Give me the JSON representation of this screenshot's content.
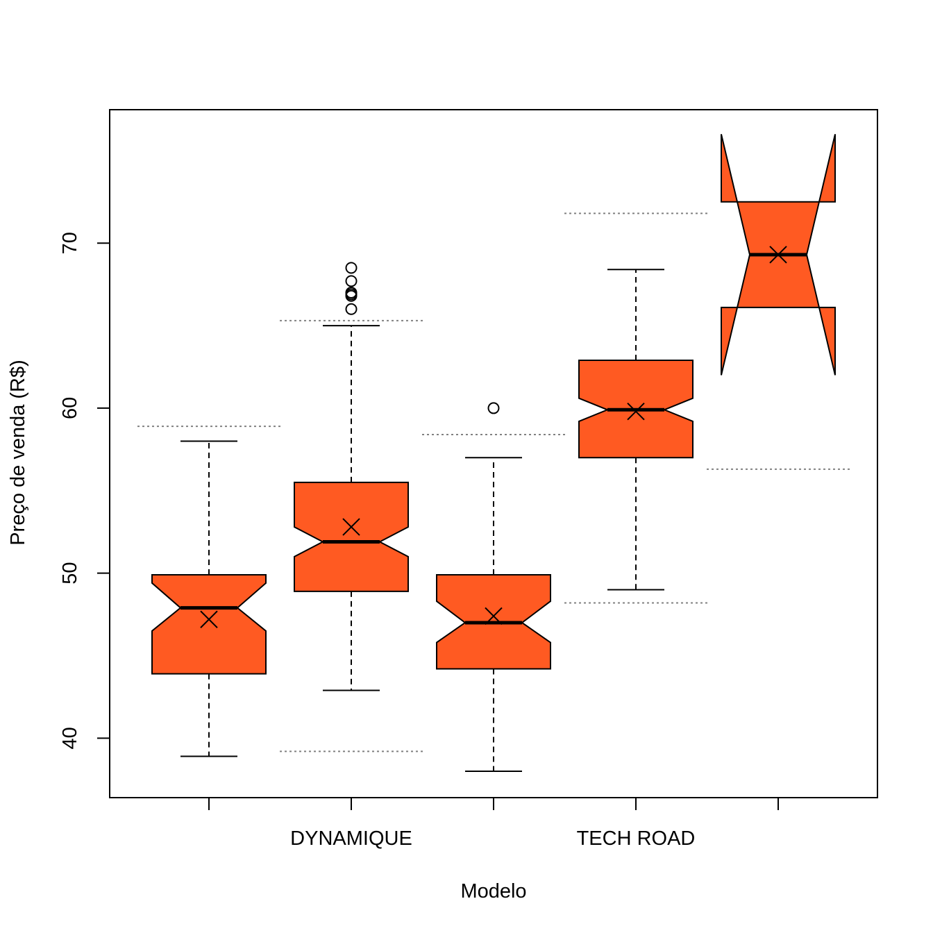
{
  "chart_data": {
    "type": "boxplot",
    "title": "",
    "xlabel": "Modelo",
    "ylabel": "Preço de venda (R$)",
    "ylim": [
      36.5,
      77.1
    ],
    "y_ticks": [
      40,
      50,
      60,
      70
    ],
    "y_tick_labels": [
      "40",
      "50",
      "60",
      "70"
    ],
    "x_tick_labels": [
      "",
      "DYNAMIQUE",
      "",
      "TECH ROAD",
      ""
    ],
    "notched": true,
    "box_color": "#ff5a22",
    "reference_line_color": "#808080",
    "boxes": [
      {
        "whisker_low": 38.9,
        "q1": 43.9,
        "median": 47.9,
        "q3": 49.9,
        "whisker_high": 58.0,
        "notch_low": 46.5,
        "notch_high": 49.4,
        "mean": 47.2,
        "ref_low": null,
        "ref_high": 58.9,
        "outliers": []
      },
      {
        "whisker_low": 42.9,
        "q1": 48.9,
        "median": 51.9,
        "q3": 55.5,
        "whisker_high": 65.0,
        "notch_low": 51.0,
        "notch_high": 52.8,
        "mean": 52.8,
        "ref_low": 39.2,
        "ref_high": 65.3,
        "outliers": [
          66.0,
          66.8,
          66.9,
          67.0,
          67.7,
          68.5
        ]
      },
      {
        "whisker_low": 38.0,
        "q1": 44.2,
        "median": 47.0,
        "q3": 49.9,
        "whisker_high": 57.0,
        "notch_low": 45.8,
        "notch_high": 48.3,
        "mean": 47.4,
        "ref_low": null,
        "ref_high": 58.4,
        "outliers": [
          60.0
        ]
      },
      {
        "whisker_low": 49.0,
        "q1": 57.0,
        "median": 59.9,
        "q3": 62.9,
        "whisker_high": 68.4,
        "notch_low": 59.2,
        "notch_high": 60.6,
        "mean": 59.8,
        "ref_low": 48.2,
        "ref_high": 71.8,
        "outliers": []
      },
      {
        "whisker_low": null,
        "q1": 66.1,
        "median": 69.3,
        "q3": 72.5,
        "whisker_high": null,
        "notch_low": 62.0,
        "notch_high": 76.6,
        "mean": 69.3,
        "ref_low": 56.3,
        "ref_high": null,
        "outliers": []
      }
    ]
  }
}
